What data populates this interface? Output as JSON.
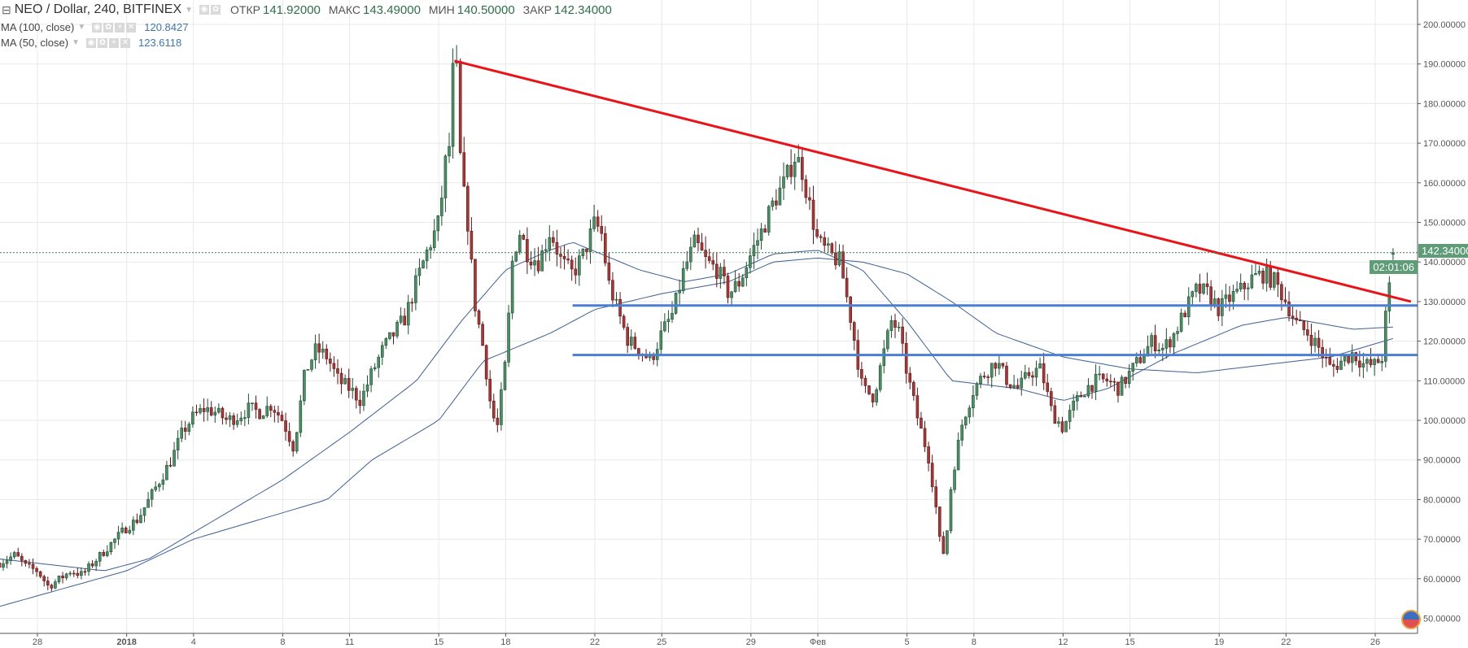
{
  "header": {
    "symbol": "NEO / Dollar, 240, BITFINEX",
    "open_label": "ОТКР",
    "open": "141.92000",
    "high_label": "МАКС",
    "high": "143.49000",
    "low_label": "МИН",
    "low": "140.50000",
    "close_label": "ЗАКР",
    "close": "142.34000"
  },
  "indicators": [
    {
      "name": "MA (100, close)",
      "value": "120.8427"
    },
    {
      "name": "MA (50, close)",
      "value": "123.6118"
    }
  ],
  "price_label": "142.34000",
  "countdown": "02:01:06",
  "colors": {
    "up": "#4f8d66",
    "up_border": "#1f4d33",
    "down": "#a33a3a",
    "down_border": "#5a1717",
    "trend": "#e8141a",
    "level": "#4a7fd4",
    "ma": "#3d5f93",
    "price_tag": "#5f9c78"
  },
  "chart_data": {
    "type": "candlestick",
    "timeframe_hours": 4,
    "day_origin": "Dec 28",
    "x_range_days": [
      -1.7,
      61.6
    ],
    "ylim": [
      46,
      206
    ],
    "y_ticks": [
      "50.00000",
      "60.00000",
      "70.00000",
      "80.00000",
      "90.00000",
      "100.00000",
      "110.00000",
      "120.00000",
      "130.00000",
      "140.00000",
      "150.00000",
      "160.00000",
      "170.00000",
      "180.00000",
      "190.00000",
      "200.00000"
    ],
    "x_ticks": [
      {
        "day": 0,
        "label": "28"
      },
      {
        "day": 4,
        "label": "2018"
      },
      {
        "day": 7,
        "label": "4"
      },
      {
        "day": 11,
        "label": "8"
      },
      {
        "day": 14,
        "label": "11"
      },
      {
        "day": 18,
        "label": "15"
      },
      {
        "day": 21,
        "label": "18"
      },
      {
        "day": 25,
        "label": "22"
      },
      {
        "day": 28,
        "label": "25"
      },
      {
        "day": 32,
        "label": "29"
      },
      {
        "day": 35,
        "label": "Фев"
      },
      {
        "day": 39,
        "label": "5"
      },
      {
        "day": 42,
        "label": "8"
      },
      {
        "day": 46,
        "label": "12"
      },
      {
        "day": 49,
        "label": "15"
      },
      {
        "day": 53,
        "label": "19"
      },
      {
        "day": 56,
        "label": "22"
      },
      {
        "day": 60,
        "label": "26"
      }
    ],
    "close_anchors": [
      [
        -1.7,
        64
      ],
      [
        -1,
        66
      ],
      [
        -0.5,
        63
      ],
      [
        0,
        62
      ],
      [
        0.5,
        58
      ],
      [
        1,
        60
      ],
      [
        1.5,
        62
      ],
      [
        2,
        61
      ],
      [
        2.5,
        64
      ],
      [
        3,
        67
      ],
      [
        3.5,
        70
      ],
      [
        4,
        73
      ],
      [
        4.5,
        75
      ],
      [
        5,
        80
      ],
      [
        5.5,
        85
      ],
      [
        6,
        90
      ],
      [
        6.5,
        97
      ],
      [
        7,
        101
      ],
      [
        7.5,
        103
      ],
      [
        8,
        102
      ],
      [
        8.5,
        100
      ],
      [
        9,
        101
      ],
      [
        9.5,
        103
      ],
      [
        10,
        102
      ],
      [
        10.5,
        104
      ],
      [
        11,
        100
      ],
      [
        11.5,
        93
      ],
      [
        12,
        112
      ],
      [
        12.5,
        118
      ],
      [
        13,
        116
      ],
      [
        13.5,
        110
      ],
      [
        14,
        108
      ],
      [
        14.5,
        105
      ],
      [
        15,
        112
      ],
      [
        15.5,
        118
      ],
      [
        16,
        122
      ],
      [
        16.5,
        126
      ],
      [
        17,
        135
      ],
      [
        17.5,
        143
      ],
      [
        18,
        150
      ],
      [
        18.3,
        165
      ],
      [
        18.5,
        170
      ],
      [
        18.65,
        190
      ],
      [
        18.8,
        188
      ],
      [
        19,
        162
      ],
      [
        19.3,
        150
      ],
      [
        19.6,
        130
      ],
      [
        20,
        118
      ],
      [
        20.3,
        105
      ],
      [
        20.6,
        97
      ],
      [
        21,
        115
      ],
      [
        21.3,
        140
      ],
      [
        21.6,
        148
      ],
      [
        22,
        142
      ],
      [
        22.5,
        140
      ],
      [
        23,
        148
      ],
      [
        23.5,
        140
      ],
      [
        24,
        137
      ],
      [
        24.5,
        142
      ],
      [
        25,
        150
      ],
      [
        25.3,
        147
      ],
      [
        25.6,
        135
      ],
      [
        26,
        128
      ],
      [
        26.5,
        120
      ],
      [
        27,
        118
      ],
      [
        27.5,
        115
      ],
      [
        28,
        122
      ],
      [
        28.5,
        127
      ],
      [
        29,
        138
      ],
      [
        29.5,
        145
      ],
      [
        30,
        140
      ],
      [
        30.5,
        138
      ],
      [
        31,
        132
      ],
      [
        31.5,
        135
      ],
      [
        32,
        142
      ],
      [
        32.5,
        148
      ],
      [
        33,
        155
      ],
      [
        33.5,
        160
      ],
      [
        34,
        167
      ],
      [
        34.3,
        163
      ],
      [
        34.6,
        155
      ],
      [
        35,
        145
      ],
      [
        35.5,
        142
      ],
      [
        36,
        140
      ],
      [
        36.5,
        125
      ],
      [
        37,
        108
      ],
      [
        37.5,
        106
      ],
      [
        38,
        118
      ],
      [
        38.3,
        125
      ],
      [
        38.6,
        123
      ],
      [
        39,
        112
      ],
      [
        39.5,
        100
      ],
      [
        40,
        90
      ],
      [
        40.3,
        78
      ],
      [
        40.5,
        68
      ],
      [
        40.7,
        66
      ],
      [
        41,
        85
      ],
      [
        41.5,
        100
      ],
      [
        42,
        108
      ],
      [
        42.5,
        112
      ],
      [
        43,
        115
      ],
      [
        43.5,
        110
      ],
      [
        44,
        108
      ],
      [
        44.5,
        112
      ],
      [
        45,
        113
      ],
      [
        45.5,
        102
      ],
      [
        46,
        98
      ],
      [
        46.5,
        104
      ],
      [
        47,
        108
      ],
      [
        47.5,
        110
      ],
      [
        48,
        110
      ],
      [
        48.5,
        108
      ],
      [
        49,
        112
      ],
      [
        49.5,
        116
      ],
      [
        50,
        120
      ],
      [
        50.5,
        118
      ],
      [
        51,
        122
      ],
      [
        51.5,
        128
      ],
      [
        52,
        133
      ],
      [
        52.5,
        132
      ],
      [
        53,
        128
      ],
      [
        53.5,
        131
      ],
      [
        54,
        133
      ],
      [
        54.5,
        136
      ],
      [
        55,
        137
      ],
      [
        55.5,
        135
      ],
      [
        56,
        130
      ],
      [
        56.5,
        124
      ],
      [
        57,
        122
      ],
      [
        57.5,
        118
      ],
      [
        58,
        113
      ],
      [
        58.5,
        115
      ],
      [
        59,
        117
      ],
      [
        59.5,
        114
      ],
      [
        60,
        114
      ],
      [
        60.3,
        116
      ],
      [
        60.5,
        128
      ],
      [
        60.7,
        136
      ],
      [
        60.9,
        142.34
      ]
    ],
    "last_candle": {
      "open": 141.92,
      "high": 143.49,
      "low": 140.5,
      "close": 142.34
    },
    "ma100": [
      [
        -1.7,
        53
      ],
      [
        4,
        62
      ],
      [
        7,
        70
      ],
      [
        13,
        80
      ],
      [
        15,
        90
      ],
      [
        18,
        100
      ],
      [
        20,
        115
      ],
      [
        23,
        122
      ],
      [
        25,
        128
      ],
      [
        28,
        132
      ],
      [
        31,
        135
      ],
      [
        33,
        140
      ],
      [
        35,
        141
      ],
      [
        37,
        140
      ],
      [
        39,
        137
      ],
      [
        41,
        130
      ],
      [
        43,
        122
      ],
      [
        46,
        116
      ],
      [
        49,
        113
      ],
      [
        52,
        112
      ],
      [
        55,
        114
      ],
      [
        58,
        116
      ],
      [
        60.9,
        120.84
      ]
    ],
    "ma50": [
      [
        -1.7,
        65
      ],
      [
        3,
        62
      ],
      [
        5,
        65
      ],
      [
        8,
        75
      ],
      [
        11,
        85
      ],
      [
        14,
        97
      ],
      [
        17,
        110
      ],
      [
        19,
        125
      ],
      [
        21,
        138
      ],
      [
        23,
        143
      ],
      [
        24,
        145
      ],
      [
        27,
        138
      ],
      [
        29,
        135
      ],
      [
        31,
        137
      ],
      [
        33,
        142
      ],
      [
        35,
        143
      ],
      [
        37,
        138
      ],
      [
        39,
        125
      ],
      [
        41,
        110
      ],
      [
        44,
        108
      ],
      [
        46,
        105
      ],
      [
        48,
        108
      ],
      [
        51,
        117
      ],
      [
        54,
        124
      ],
      [
        56,
        126
      ],
      [
        59,
        123
      ],
      [
        60.9,
        123.61
      ]
    ],
    "trendline": [
      [
        18.7,
        190.8
      ],
      [
        61.6,
        130
      ]
    ],
    "levels": [
      {
        "price": 129,
        "from_day": 24
      },
      {
        "price": 116.5,
        "from_day": 24
      }
    ],
    "last_price": 142.34
  }
}
